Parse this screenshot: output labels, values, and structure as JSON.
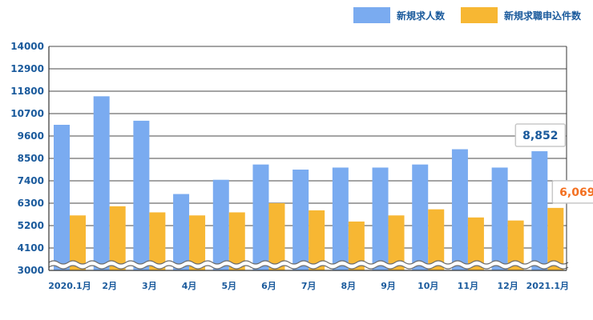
{
  "chart_data": {
    "type": "bar",
    "categories": [
      "2020.1月",
      "2月",
      "3月",
      "4月",
      "5月",
      "6月",
      "7月",
      "8月",
      "9月",
      "10月",
      "11月",
      "12月",
      "2021.1月"
    ],
    "series": [
      {
        "name": "新規求人数",
        "color": "#7aabf0",
        "values": [
          10150,
          11550,
          10350,
          6750,
          7450,
          8200,
          7950,
          8050,
          8050,
          8200,
          8950,
          8050,
          8852
        ]
      },
      {
        "name": "新規求職申込件数",
        "color": "#f7b733",
        "values": [
          5700,
          6150,
          5850,
          5700,
          5850,
          6300,
          5950,
          5400,
          5700,
          6000,
          5600,
          5450,
          6069
        ]
      }
    ],
    "yticks": [
      "14000",
      "12900",
      "11800",
      "10700",
      "9600",
      "8500",
      "7400",
      "6300",
      "5200",
      "4100",
      "3000"
    ],
    "ylim": [
      3000,
      14000
    ],
    "grid": true,
    "legend_position": "top-right",
    "axis_break": true,
    "callouts": [
      {
        "series": 0,
        "index": 12,
        "text": "8,852",
        "color": "#1a5a9c"
      },
      {
        "series": 1,
        "index": 12,
        "text": "6,069",
        "color": "#f37021"
      }
    ]
  }
}
